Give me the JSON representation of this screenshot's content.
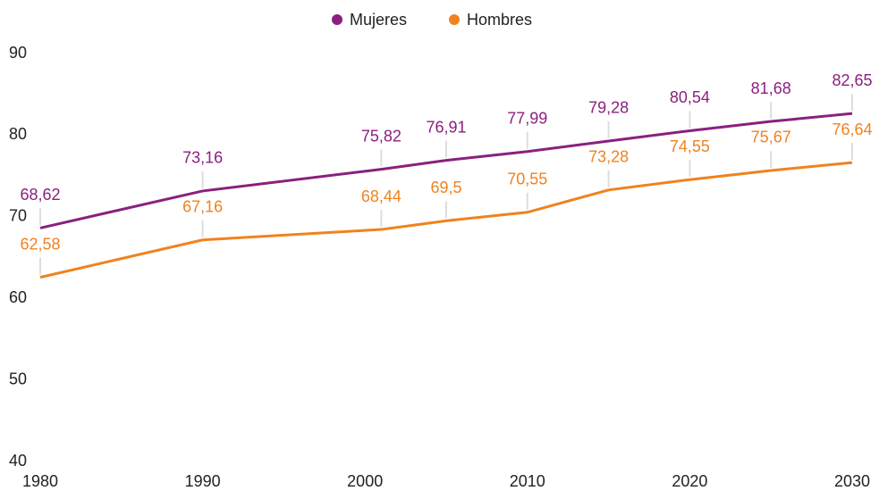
{
  "chart_data": {
    "type": "line",
    "x": [
      1980,
      1990,
      2001,
      2005,
      2010,
      2015,
      2020,
      2025,
      2030
    ],
    "series": [
      {
        "name": "Mujeres",
        "color": "#8b1f7f",
        "values": [
          68.62,
          73.16,
          75.82,
          76.91,
          77.99,
          79.28,
          80.54,
          81.68,
          82.65
        ],
        "value_labels": [
          "68,62",
          "73,16",
          "75,82",
          "76,91",
          "77,99",
          "79,28",
          "80,54",
          "81,68",
          "82,65"
        ]
      },
      {
        "name": "Hombres",
        "color": "#f0821e",
        "values": [
          62.58,
          67.16,
          68.44,
          69.5,
          70.55,
          73.28,
          74.55,
          75.67,
          76.64
        ],
        "value_labels": [
          "62,58",
          "67,16",
          "68,44",
          "69,5",
          "70,55",
          "73,28",
          "74,55",
          "75,67",
          "76,64"
        ]
      }
    ],
    "xlim": [
      1980,
      2030
    ],
    "xticks": [
      1980,
      1990,
      2000,
      2010,
      2020,
      2030
    ],
    "ylim": [
      40,
      90
    ],
    "yticks": [
      40,
      50,
      60,
      70,
      80,
      90
    ],
    "legend": "top"
  }
}
